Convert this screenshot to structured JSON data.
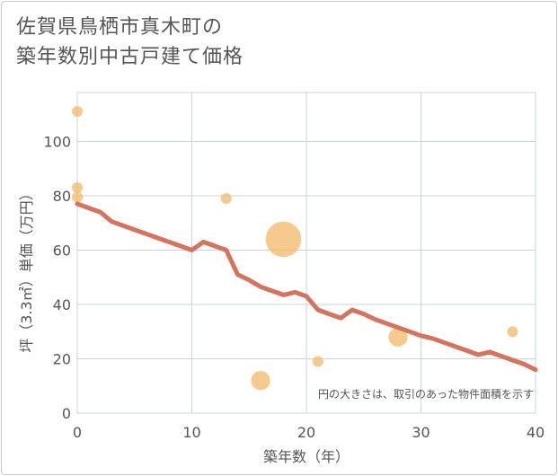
{
  "title_lines": [
    "佐賀県鳥栖市真木町の",
    "築年数別中古戸建て価格"
  ],
  "chart_data": {
    "type": "scatter",
    "title": "佐賀県鳥栖市真木町の築年数別中古戸建て価格",
    "xlabel": "築年数（年）",
    "ylabel": "坪（3.3㎡）単価（万円）",
    "xlim": [
      0,
      40
    ],
    "ylim": [
      0,
      118
    ],
    "xticks": [
      0,
      10,
      20,
      30,
      40
    ],
    "yticks": [
      0,
      20,
      40,
      60,
      80,
      100
    ],
    "grid": true,
    "annotation": "円の大きさは、取引のあった物件面積を示す",
    "points": [
      {
        "x": 0,
        "y": 111,
        "size": 1
      },
      {
        "x": 0,
        "y": 83,
        "size": 1
      },
      {
        "x": 0,
        "y": 79.5,
        "size": 1
      },
      {
        "x": 13,
        "y": 79,
        "size": 1
      },
      {
        "x": 18,
        "y": 64,
        "size": 4
      },
      {
        "x": 16,
        "y": 12,
        "size": 2
      },
      {
        "x": 21,
        "y": 19,
        "size": 1
      },
      {
        "x": 28,
        "y": 28,
        "size": 2
      },
      {
        "x": 38,
        "y": 30,
        "size": 1
      }
    ],
    "trend_line": {
      "x": [
        0,
        2,
        3,
        5,
        7,
        9,
        10,
        11,
        12,
        13,
        14,
        15,
        16,
        17,
        18,
        19,
        20,
        21,
        22,
        23,
        24,
        25,
        26,
        27,
        28,
        29,
        30,
        31,
        32,
        33,
        34,
        35,
        36,
        37,
        38,
        39,
        40
      ],
      "y": [
        77,
        74,
        70.5,
        67.5,
        64.5,
        61.5,
        60,
        63,
        61.5,
        60,
        51,
        49,
        46.5,
        45,
        43.5,
        44.5,
        43,
        38,
        36.5,
        35,
        38,
        36.5,
        34.5,
        33,
        31.5,
        30,
        28.5,
        27.5,
        26,
        24.5,
        23,
        21.5,
        22.5,
        21,
        19.5,
        18,
        16
      ]
    },
    "colors": {
      "point": "#f2b865",
      "line": "#d4735e",
      "grid": "#c6d3e0",
      "axis_text": "#555555"
    }
  }
}
